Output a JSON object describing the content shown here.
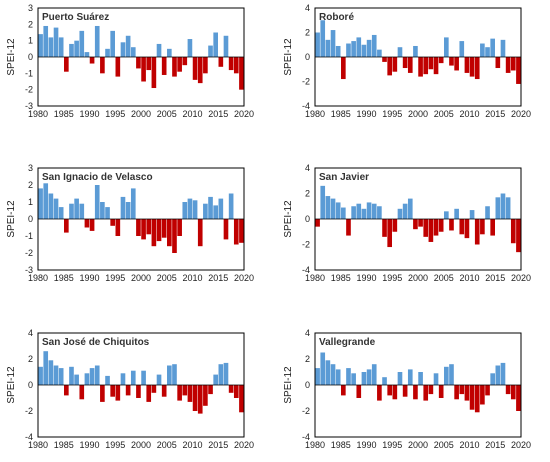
{
  "colors": {
    "positive": "#5b9bd5",
    "negative": "#c00000",
    "frame": "#000000",
    "baseline": "#000000"
  },
  "chart_data": [
    {
      "type": "bar",
      "title": "Puerto Suárez",
      "ylabel": "SPEI-12",
      "xlim": [
        1980,
        2020
      ],
      "ylim": [
        -3,
        3
      ],
      "yticks": [
        3,
        2,
        1,
        0,
        -1,
        -2,
        -3
      ],
      "xticks": [
        1980,
        1985,
        1990,
        1995,
        2000,
        2005,
        2010,
        2015,
        2020
      ],
      "grid": false,
      "legend": "none",
      "series": [
        {
          "x": [
            1980.5,
            1981.5,
            1982.5,
            1983.5,
            1984.5,
            1985.5,
            1986.5,
            1987.5,
            1988.5,
            1989.5,
            1990.5,
            1991.5,
            1992.5,
            1993.5,
            1994.5,
            1995.5,
            1996.5,
            1997.5,
            1998.5,
            1999.5,
            2000.5,
            2001.5,
            2002.5,
            2003.5,
            2004.5,
            2005.5,
            2006.5,
            2007.5,
            2008.5,
            2009.5,
            2010.5,
            2011.5,
            2012.5,
            2013.5,
            2014.5,
            2015.5,
            2016.5,
            2017.5,
            2018.5,
            2019.5
          ],
          "values": [
            1.4,
            1.9,
            1.2,
            1.8,
            1.2,
            -0.9,
            0.8,
            1.0,
            1.6,
            0.3,
            -0.4,
            1.9,
            -1.0,
            0.5,
            1.6,
            -1.2,
            0.9,
            1.3,
            0.6,
            -0.7,
            -1.5,
            -0.8,
            -1.9,
            0.8,
            -1.1,
            0.5,
            -1.2,
            -0.9,
            -0.5,
            1.1,
            -1.4,
            -1.6,
            -1.0,
            0.7,
            1.5,
            -0.6,
            1.3,
            -0.8,
            -1.0,
            -2.0
          ]
        }
      ]
    },
    {
      "type": "bar",
      "title": "Roboré",
      "ylabel": "SPEI-12",
      "xlim": [
        1980,
        2020
      ],
      "ylim": [
        -4,
        4
      ],
      "yticks": [
        4,
        2,
        0,
        -2,
        -4
      ],
      "xticks": [
        1980,
        1985,
        1990,
        1995,
        2000,
        2005,
        2010,
        2015,
        2020
      ],
      "grid": false,
      "legend": "none",
      "series": [
        {
          "x": [
            1980.5,
            1981.5,
            1982.5,
            1983.5,
            1984.5,
            1985.5,
            1986.5,
            1987.5,
            1988.5,
            1989.5,
            1990.5,
            1991.5,
            1992.5,
            1993.5,
            1994.5,
            1995.5,
            1996.5,
            1997.5,
            1998.5,
            1999.5,
            2000.5,
            2001.5,
            2002.5,
            2003.5,
            2004.5,
            2005.5,
            2006.5,
            2007.5,
            2008.5,
            2009.5,
            2010.5,
            2011.5,
            2012.5,
            2013.5,
            2014.5,
            2015.5,
            2016.5,
            2017.5,
            2018.5,
            2019.5
          ],
          "values": [
            2.0,
            3.0,
            1.4,
            2.2,
            0.9,
            -1.8,
            1.1,
            1.3,
            1.6,
            1.0,
            1.4,
            1.8,
            0.6,
            -0.4,
            -1.5,
            -1.2,
            0.8,
            -0.9,
            -1.3,
            0.9,
            -1.6,
            -1.4,
            -1.0,
            -1.4,
            -0.5,
            1.6,
            -0.7,
            -1.1,
            1.3,
            -1.3,
            -1.6,
            -1.8,
            1.1,
            0.8,
            1.5,
            -0.9,
            1.4,
            -1.3,
            -1.1,
            -2.2
          ]
        }
      ]
    },
    {
      "type": "bar",
      "title": "San Ignacio de Velasco",
      "ylabel": "SPEI-12",
      "xlim": [
        1980,
        2020
      ],
      "ylim": [
        -3,
        3
      ],
      "yticks": [
        3,
        2,
        1,
        0,
        -1,
        -2,
        -3
      ],
      "xticks": [
        1980,
        1985,
        1990,
        1995,
        2000,
        2005,
        2010,
        2015,
        2020
      ],
      "grid": false,
      "legend": "none",
      "series": [
        {
          "x": [
            1980.5,
            1981.5,
            1982.5,
            1983.5,
            1984.5,
            1985.5,
            1986.5,
            1987.5,
            1988.5,
            1989.5,
            1990.5,
            1991.5,
            1992.5,
            1993.5,
            1994.5,
            1995.5,
            1996.5,
            1997.5,
            1998.5,
            1999.5,
            2000.5,
            2001.5,
            2002.5,
            2003.5,
            2004.5,
            2005.5,
            2006.5,
            2007.5,
            2008.5,
            2009.5,
            2010.5,
            2011.5,
            2012.5,
            2013.5,
            2014.5,
            2015.5,
            2016.5,
            2017.5,
            2018.5,
            2019.5
          ],
          "values": [
            1.8,
            2.1,
            1.5,
            1.2,
            0.7,
            -0.8,
            0.9,
            1.2,
            0.9,
            -0.5,
            -0.7,
            2.0,
            1.0,
            0.7,
            -0.4,
            -1.0,
            1.3,
            1.0,
            1.8,
            -1.0,
            -1.2,
            -0.9,
            -1.6,
            -1.3,
            -1.1,
            -1.6,
            -2.0,
            -1.0,
            1.0,
            1.2,
            1.1,
            -1.6,
            0.9,
            1.3,
            0.8,
            1.2,
            -1.2,
            1.5,
            -1.5,
            -1.4
          ]
        }
      ]
    },
    {
      "type": "bar",
      "title": "San Javier",
      "ylabel": "SPEI-12",
      "xlim": [
        1980,
        2020
      ],
      "ylim": [
        -4,
        4
      ],
      "yticks": [
        4,
        2,
        0,
        -2,
        -4
      ],
      "xticks": [
        1980,
        1985,
        1990,
        1995,
        2000,
        2005,
        2010,
        2015,
        2020
      ],
      "grid": false,
      "legend": "none",
      "series": [
        {
          "x": [
            1980.5,
            1981.5,
            1982.5,
            1983.5,
            1984.5,
            1985.5,
            1986.5,
            1987.5,
            1988.5,
            1989.5,
            1990.5,
            1991.5,
            1992.5,
            1993.5,
            1994.5,
            1995.5,
            1996.5,
            1997.5,
            1998.5,
            1999.5,
            2000.5,
            2001.5,
            2002.5,
            2003.5,
            2004.5,
            2005.5,
            2006.5,
            2007.5,
            2008.5,
            2009.5,
            2010.5,
            2011.5,
            2012.5,
            2013.5,
            2014.5,
            2015.5,
            2016.5,
            2017.5,
            2018.5,
            2019.5
          ],
          "values": [
            -0.6,
            2.6,
            1.8,
            1.6,
            1.3,
            0.9,
            -1.3,
            1.0,
            1.2,
            0.8,
            1.3,
            1.2,
            1.0,
            -1.4,
            -2.2,
            -1.0,
            0.8,
            1.2,
            1.6,
            -0.8,
            -0.6,
            -1.4,
            -1.8,
            -1.3,
            -1.0,
            0.6,
            -0.9,
            0.8,
            -1.2,
            -1.5,
            0.7,
            -2.0,
            -1.2,
            1.0,
            -1.3,
            1.7,
            2.0,
            1.7,
            -1.9,
            -2.6
          ]
        }
      ]
    },
    {
      "type": "bar",
      "title": "San José de Chiquitos",
      "ylabel": "SPEI-12",
      "xlim": [
        1980,
        2020
      ],
      "ylim": [
        -4,
        4
      ],
      "yticks": [
        4,
        2,
        0,
        -2,
        -4
      ],
      "xticks": [
        1980,
        1985,
        1990,
        1995,
        2000,
        2005,
        2010,
        2015,
        2020
      ],
      "grid": false,
      "legend": "none",
      "series": [
        {
          "x": [
            1980.5,
            1981.5,
            1982.5,
            1983.5,
            1984.5,
            1985.5,
            1986.5,
            1987.5,
            1988.5,
            1989.5,
            1990.5,
            1991.5,
            1992.5,
            1993.5,
            1994.5,
            1995.5,
            1996.5,
            1997.5,
            1998.5,
            1999.5,
            2000.5,
            2001.5,
            2002.5,
            2003.5,
            2004.5,
            2005.5,
            2006.5,
            2007.5,
            2008.5,
            2009.5,
            2010.5,
            2011.5,
            2012.5,
            2013.5,
            2014.5,
            2015.5,
            2016.5,
            2017.5,
            2018.5,
            2019.5
          ],
          "values": [
            1.4,
            2.6,
            1.9,
            1.5,
            1.3,
            -0.8,
            1.4,
            0.8,
            -1.1,
            0.9,
            1.3,
            1.5,
            -1.3,
            0.7,
            -0.9,
            -1.2,
            0.9,
            -0.8,
            1.1,
            -1.0,
            1.1,
            -1.3,
            -0.6,
            0.8,
            -0.9,
            1.5,
            1.6,
            -1.2,
            -0.8,
            -1.3,
            -2.0,
            -2.2,
            -1.6,
            -0.7,
            0.8,
            1.6,
            1.7,
            -0.6,
            -1.0,
            -2.1
          ]
        }
      ]
    },
    {
      "type": "bar",
      "title": "Vallegrande",
      "ylabel": "SPEI-12",
      "xlim": [
        1980,
        2020
      ],
      "ylim": [
        -4,
        4
      ],
      "yticks": [
        4,
        2,
        0,
        -2,
        -4
      ],
      "xticks": [
        1980,
        1985,
        1990,
        1995,
        2000,
        2005,
        2010,
        2015,
        2020
      ],
      "grid": false,
      "legend": "none",
      "series": [
        {
          "x": [
            1980.5,
            1981.5,
            1982.5,
            1983.5,
            1984.5,
            1985.5,
            1986.5,
            1987.5,
            1988.5,
            1989.5,
            1990.5,
            1991.5,
            1992.5,
            1993.5,
            1994.5,
            1995.5,
            1996.5,
            1997.5,
            1998.5,
            1999.5,
            2000.5,
            2001.5,
            2002.5,
            2003.5,
            2004.5,
            2005.5,
            2006.5,
            2007.5,
            2008.5,
            2009.5,
            2010.5,
            2011.5,
            2012.5,
            2013.5,
            2014.5,
            2015.5,
            2016.5,
            2017.5,
            2018.5,
            2019.5
          ],
          "values": [
            1.3,
            2.5,
            1.9,
            1.6,
            1.2,
            -0.8,
            1.3,
            0.9,
            -1.0,
            1.0,
            1.2,
            1.6,
            -1.2,
            0.6,
            -0.8,
            -1.1,
            1.0,
            -0.9,
            1.2,
            -1.1,
            1.0,
            -1.2,
            -0.7,
            0.9,
            -1.0,
            1.4,
            1.6,
            -1.1,
            -0.7,
            -1.2,
            -1.9,
            -2.1,
            -1.5,
            -0.8,
            0.9,
            1.5,
            1.7,
            -0.7,
            -1.1,
            -2.0
          ]
        }
      ]
    }
  ]
}
